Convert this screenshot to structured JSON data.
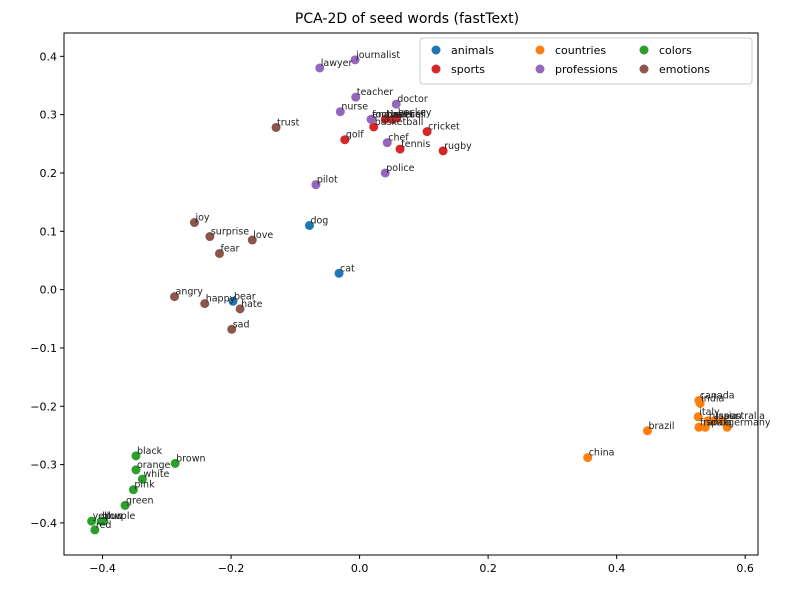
{
  "chart_data": {
    "type": "scatter",
    "title": "PCA-2D of seed words (fastText)",
    "xlabel": "",
    "ylabel": "",
    "xlim": [
      -0.46,
      0.62
    ],
    "ylim": [
      -0.455,
      0.44
    ],
    "xticks": [
      -0.4,
      -0.2,
      0.0,
      0.2,
      0.4,
      0.6
    ],
    "xtick_labels": [
      "−0.4",
      "−0.2",
      "0.0",
      "0.2",
      "0.4",
      "0.6"
    ],
    "yticks": [
      -0.4,
      -0.3,
      -0.2,
      -0.1,
      0.0,
      0.1,
      0.2,
      0.3,
      0.4
    ],
    "ytick_labels": [
      "−0.4",
      "−0.3",
      "−0.2",
      "−0.1",
      "0.0",
      "0.1",
      "0.2",
      "0.3",
      "0.4"
    ],
    "grid": false,
    "legend": {
      "placement": "top-right",
      "columns": 3
    },
    "series": [
      {
        "name": "animals",
        "color": "#1f77b4",
        "points": [
          {
            "label": "dog",
            "x": -0.078,
            "y": 0.11
          },
          {
            "label": "cat",
            "x": -0.032,
            "y": 0.028
          },
          {
            "label": "bear",
            "x": -0.197,
            "y": -0.02
          }
        ]
      },
      {
        "name": "countries",
        "color": "#ff7f0e",
        "points": [
          {
            "label": "canada",
            "x": 0.528,
            "y": -0.19
          },
          {
            "label": "india",
            "x": 0.53,
            "y": -0.195
          },
          {
            "label": "italy",
            "x": 0.527,
            "y": -0.218
          },
          {
            "label": "russia",
            "x": 0.542,
            "y": -0.225
          },
          {
            "label": "japan",
            "x": 0.552,
            "y": -0.225
          },
          {
            "label": "australia",
            "x": 0.565,
            "y": -0.225
          },
          {
            "label": "france",
            "x": 0.528,
            "y": -0.236
          },
          {
            "label": "spain",
            "x": 0.538,
            "y": -0.236
          },
          {
            "label": "germany",
            "x": 0.572,
            "y": -0.236
          },
          {
            "label": "brazil",
            "x": 0.448,
            "y": -0.242
          },
          {
            "label": "china",
            "x": 0.355,
            "y": -0.288
          }
        ]
      },
      {
        "name": "colors",
        "color": "#2ca02c",
        "points": [
          {
            "label": "black",
            "x": -0.348,
            "y": -0.285
          },
          {
            "label": "brown",
            "x": -0.287,
            "y": -0.298
          },
          {
            "label": "orange",
            "x": -0.348,
            "y": -0.309
          },
          {
            "label": "white",
            "x": -0.338,
            "y": -0.325
          },
          {
            "label": "pink",
            "x": -0.352,
            "y": -0.343
          },
          {
            "label": "green",
            "x": -0.365,
            "y": -0.37
          },
          {
            "label": "yellow",
            "x": -0.417,
            "y": -0.397
          },
          {
            "label": "blue",
            "x": -0.402,
            "y": -0.397
          },
          {
            "label": "purple",
            "x": -0.398,
            "y": -0.397
          },
          {
            "label": "red",
            "x": -0.412,
            "y": -0.412
          }
        ]
      },
      {
        "name": "sports",
        "color": "#d62728",
        "points": [
          {
            "label": "tennis",
            "x": 0.063,
            "y": 0.241
          },
          {
            "label": "rugby",
            "x": 0.13,
            "y": 0.238
          },
          {
            "label": "cricket",
            "x": 0.105,
            "y": 0.271
          },
          {
            "label": "golf",
            "x": -0.023,
            "y": 0.257
          },
          {
            "label": "basketball",
            "x": 0.022,
            "y": 0.279
          },
          {
            "label": "football",
            "x": 0.018,
            "y": 0.292
          },
          {
            "label": "baseball",
            "x": 0.04,
            "y": 0.292
          },
          {
            "label": "soccer",
            "x": 0.052,
            "y": 0.292
          },
          {
            "label": "hockey",
            "x": 0.058,
            "y": 0.295
          }
        ]
      },
      {
        "name": "professions",
        "color": "#9467bd",
        "points": [
          {
            "label": "journalist",
            "x": -0.007,
            "y": 0.394
          },
          {
            "label": "lawyer",
            "x": -0.062,
            "y": 0.38
          },
          {
            "label": "teacher",
            "x": -0.006,
            "y": 0.33
          },
          {
            "label": "doctor",
            "x": 0.057,
            "y": 0.318
          },
          {
            "label": "nurse",
            "x": -0.03,
            "y": 0.305
          },
          {
            "label": "engineer",
            "x": 0.018,
            "y": 0.292
          },
          {
            "label": "chef",
            "x": 0.043,
            "y": 0.252
          },
          {
            "label": "police",
            "x": 0.04,
            "y": 0.2
          },
          {
            "label": "pilot",
            "x": -0.068,
            "y": 0.18
          }
        ]
      },
      {
        "name": "emotions",
        "color": "#8c564b",
        "points": [
          {
            "label": "trust",
            "x": -0.13,
            "y": 0.278
          },
          {
            "label": "joy",
            "x": -0.257,
            "y": 0.115
          },
          {
            "label": "surprise",
            "x": -0.233,
            "y": 0.091
          },
          {
            "label": "love",
            "x": -0.167,
            "y": 0.085
          },
          {
            "label": "fear",
            "x": -0.218,
            "y": 0.062
          },
          {
            "label": "angry",
            "x": -0.288,
            "y": -0.012
          },
          {
            "label": "happy",
            "x": -0.241,
            "y": -0.024
          },
          {
            "label": "hate",
            "x": -0.186,
            "y": -0.033
          },
          {
            "label": "sad",
            "x": -0.199,
            "y": -0.068
          }
        ]
      }
    ]
  }
}
